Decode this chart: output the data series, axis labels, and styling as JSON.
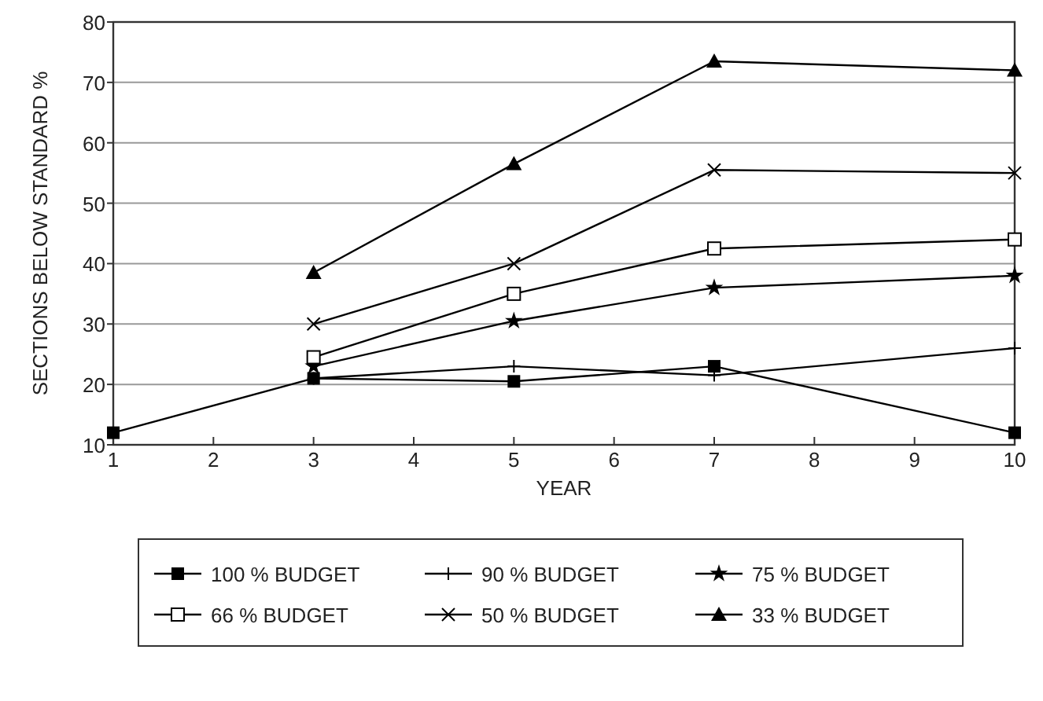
{
  "chart_data": {
    "type": "line",
    "xlabel": "YEAR",
    "ylabel": "SECTIONS BELOW STANDARD %",
    "xlim": [
      1,
      10
    ],
    "xticks": [
      1,
      2,
      3,
      4,
      5,
      6,
      7,
      8,
      9,
      10
    ],
    "ylim": [
      10,
      80
    ],
    "yticks": [
      10,
      20,
      30,
      40,
      50,
      60,
      70,
      80
    ],
    "grid": "y",
    "legend": "bottom",
    "series": [
      {
        "name": "100 % BUDGET",
        "color": "#000000",
        "marker": "square",
        "x": [
          1,
          3,
          5,
          7,
          10
        ],
        "values": [
          12,
          21,
          20.5,
          23,
          12
        ]
      },
      {
        "name": "90 % BUDGET",
        "color": "#000000",
        "marker": "plus",
        "x": [
          3,
          5,
          7,
          10
        ],
        "values": [
          21,
          23,
          21.5,
          26
        ]
      },
      {
        "name": "75 % BUDGET",
        "color": "#000000",
        "marker": "star",
        "x": [
          3,
          5,
          7,
          10
        ],
        "values": [
          23,
          30.5,
          36,
          38
        ]
      },
      {
        "name": "66 % BUDGET",
        "color": "#000000",
        "marker": "square-open",
        "x": [
          3,
          5,
          7,
          10
        ],
        "values": [
          24.5,
          35,
          42.5,
          44
        ]
      },
      {
        "name": "50 % BUDGET",
        "color": "#000000",
        "marker": "cross",
        "x": [
          3,
          5,
          7,
          10
        ],
        "values": [
          30,
          40,
          55.5,
          55
        ]
      },
      {
        "name": "33 % BUDGET",
        "color": "#000000",
        "marker": "triangle",
        "x": [
          3,
          5,
          7,
          10
        ],
        "values": [
          38.5,
          56.5,
          73.5,
          72
        ]
      }
    ]
  }
}
